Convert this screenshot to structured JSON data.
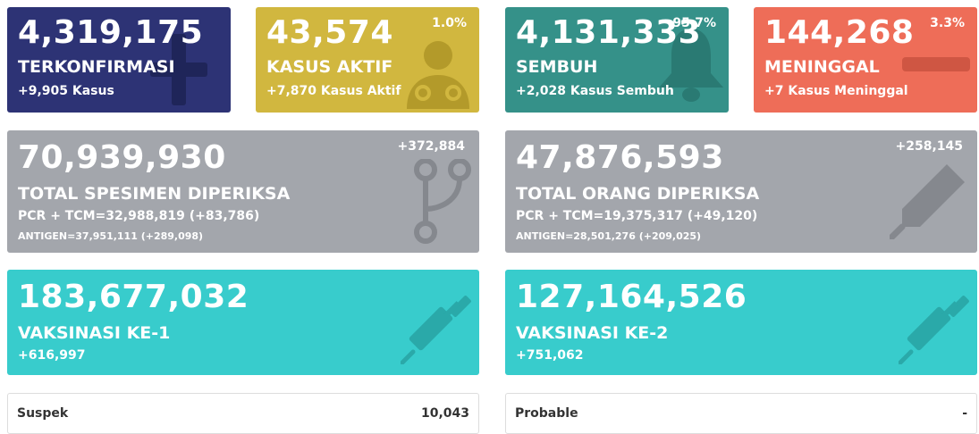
{
  "cards": {
    "confirmed": {
      "value": "4,319,175",
      "label": "TERKONFIRMASI",
      "sub": "+9,905 Kasus",
      "color": "#2d3375"
    },
    "active": {
      "value": "43,574",
      "label": "KASUS AKTIF",
      "sub": "+7,870 Kasus Aktif",
      "pct": "1.0%",
      "color": "#d1b73f"
    },
    "recovered": {
      "value": "4,131,333",
      "label": "SEMBUH",
      "sub": "+2,028 Kasus Sembuh",
      "pct": "95.7%",
      "color": "#359189"
    },
    "deaths": {
      "value": "144,268",
      "label": "MENINGGAL",
      "sub": "+7 Kasus Meninggal",
      "pct": "3.3%",
      "color": "#ee6d58"
    }
  },
  "tests": {
    "specimens": {
      "value": "70,939,930",
      "label": "TOTAL SPESIMEN DIPERIKSA",
      "pcr": "PCR + TCM=32,988,819 (+83,786)",
      "antigen": "ANTIGEN=37,951,111 (+289,098)",
      "delta": "+372,884"
    },
    "people": {
      "value": "47,876,593",
      "label": "TOTAL ORANG DIPERIKSA",
      "pcr": "PCR + TCM=19,375,317 (+49,120)",
      "antigen": "ANTIGEN=28,501,276 (+209,025)",
      "delta": "+258,145"
    }
  },
  "vaccines": {
    "dose1": {
      "value": "183,677,032",
      "label": "VAKSINASI KE-1",
      "sub": "+616,997"
    },
    "dose2": {
      "value": "127,164,526",
      "label": "VAKSINASI KE-2",
      "sub": "+751,062"
    }
  },
  "bottom": {
    "suspect": {
      "label": "Suspek",
      "value": "10,043"
    },
    "probable": {
      "label": "Probable",
      "value": "-"
    }
  },
  "colors": {
    "grey": "#a3a6ac",
    "teal": "#38cccc"
  },
  "icons": [
    "plus-icon",
    "doctor-icon",
    "bell-icon",
    "minus-icon",
    "test-tube-icon",
    "thermometer-icon",
    "syringe-icon"
  ]
}
